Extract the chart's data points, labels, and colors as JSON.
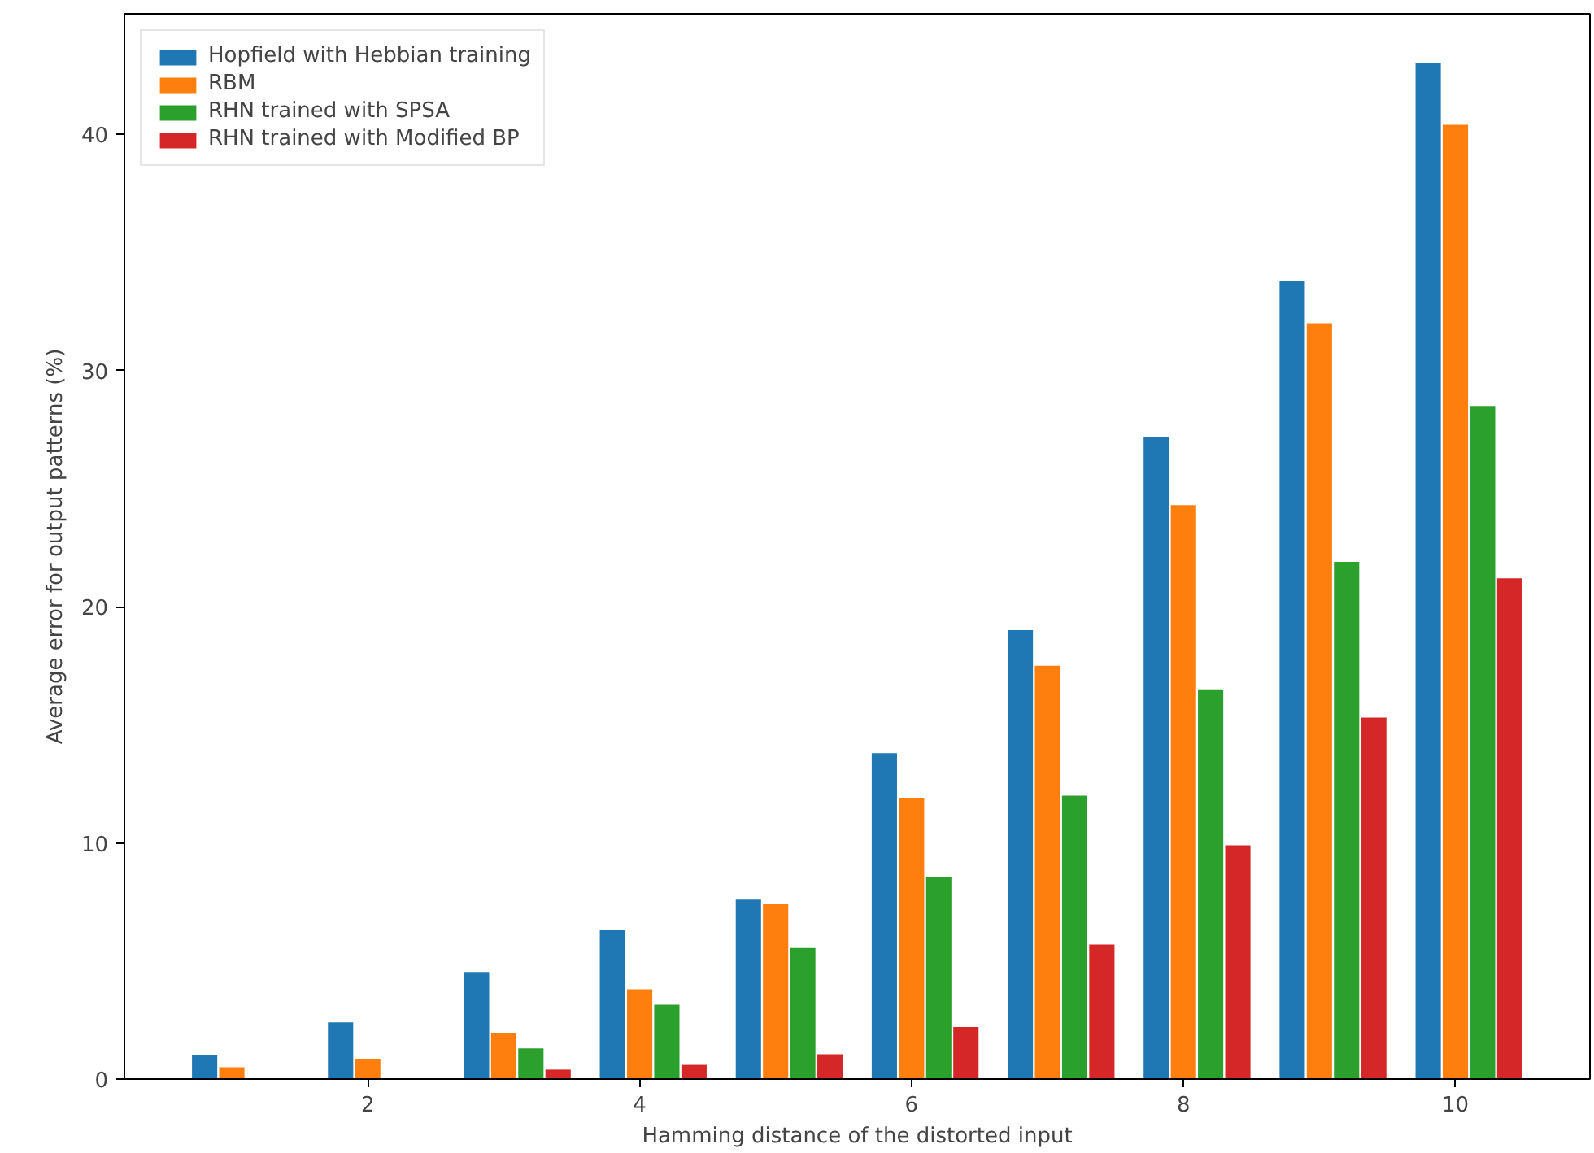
{
  "chart_data": {
    "type": "bar",
    "xlabel": "Hamming distance of the distorted input",
    "ylabel": "Average error for output patterns (%)",
    "x": [
      1,
      2,
      3,
      4,
      5,
      6,
      7,
      8,
      9,
      10
    ],
    "series": [
      {
        "name": "Hopfield with Hebbian training",
        "color": "#1f77b4",
        "values": [
          1.0,
          2.4,
          4.5,
          6.3,
          7.6,
          13.8,
          19.0,
          27.2,
          33.8,
          43.0
        ]
      },
      {
        "name": "RBM",
        "color": "#ff7f0e",
        "values": [
          0.5,
          0.85,
          1.95,
          3.8,
          7.4,
          11.9,
          17.5,
          24.3,
          32.0,
          40.4
        ]
      },
      {
        "name": "RHN trained with SPSA",
        "color": "#2ca02c",
        "values": [
          0,
          0,
          1.3,
          3.15,
          5.55,
          8.55,
          12.0,
          16.5,
          21.9,
          28.5
        ]
      },
      {
        "name": "RHN trained with Modified BP",
        "color": "#d62728",
        "values": [
          0,
          0,
          0.4,
          0.6,
          1.05,
          2.2,
          5.7,
          9.9,
          15.3,
          21.2
        ]
      }
    ],
    "xlim": [
      0.21,
      10.99
    ],
    "ylim": [
      0,
      45.1
    ],
    "xticks": [
      2,
      4,
      6,
      8,
      10
    ],
    "yticks": [
      0,
      10,
      20,
      30,
      40
    ],
    "grid": false,
    "legend": "top left"
  }
}
